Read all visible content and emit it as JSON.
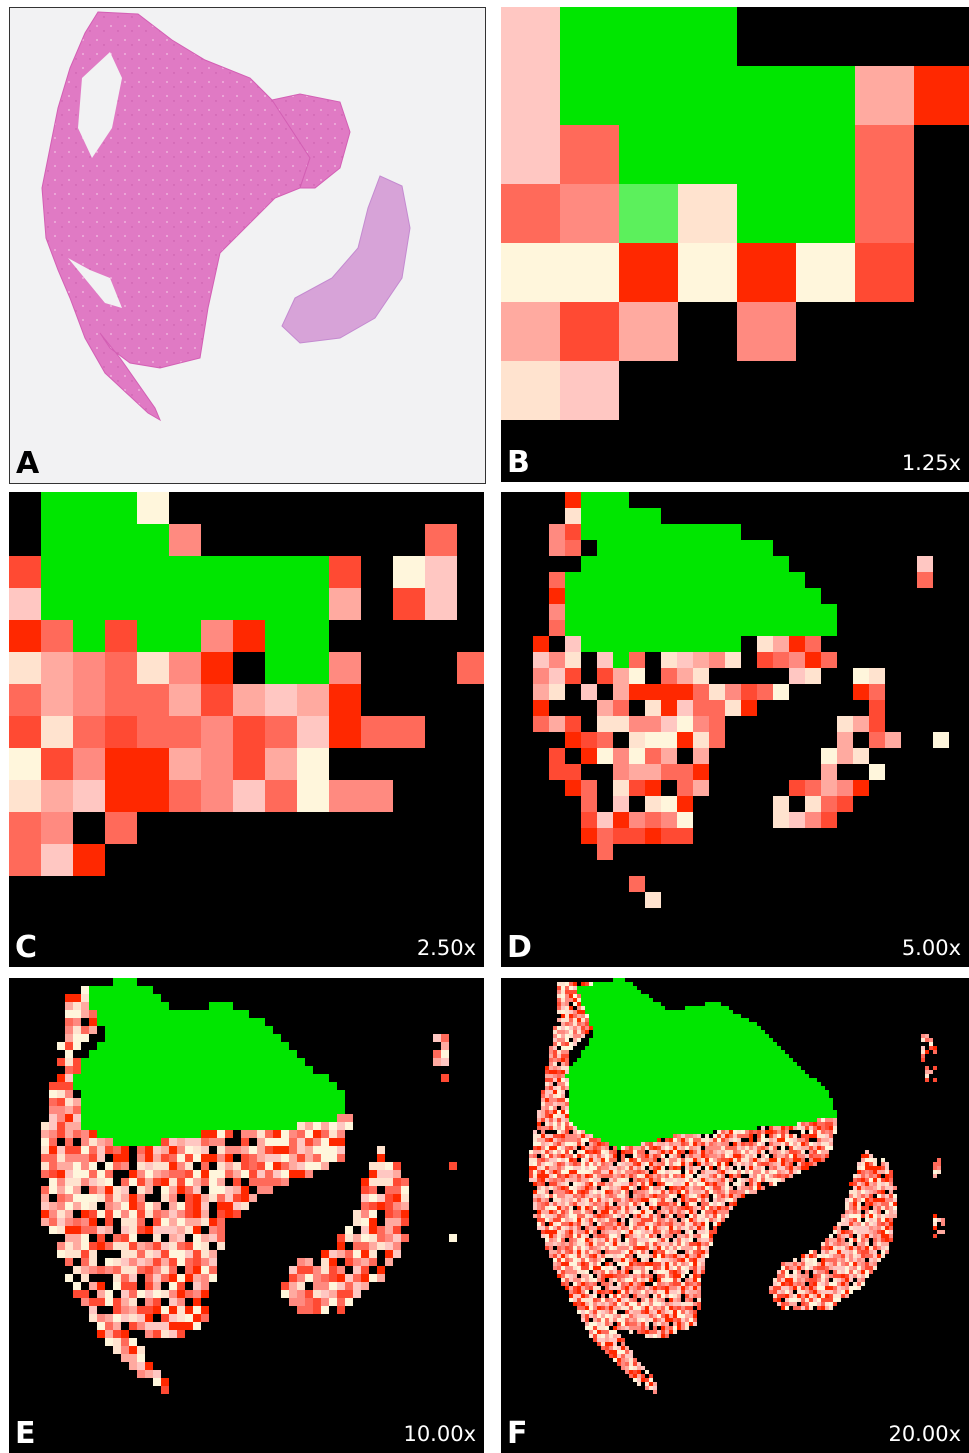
{
  "panels": [
    {
      "label": "A",
      "magnification": ""
    },
    {
      "label": "B",
      "magnification": "1.25x"
    },
    {
      "label": "C",
      "magnification": "2.50x"
    },
    {
      "label": "D",
      "magnification": "5.00x"
    },
    {
      "label": "E",
      "magnification": "10.00x"
    },
    {
      "label": "F",
      "magnification": "20.00x"
    }
  ],
  "colors": {
    "tissue_stain": "#e27fc7",
    "tissue_stain_light": "#d9a6d8",
    "slide_background": "#f2f2f3",
    "map_background": "#000000",
    "excluded_region": "#00e600",
    "heat_low": "#fff6dc",
    "heat_high": "#ff2800"
  }
}
